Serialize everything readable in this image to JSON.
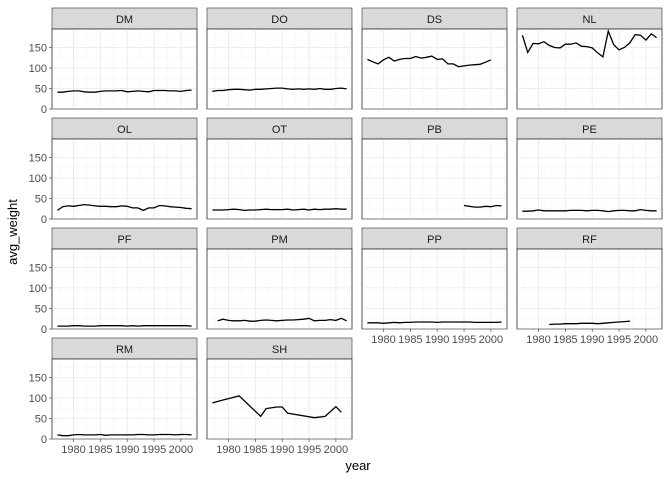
{
  "chart_data": {
    "type": "line",
    "title": "",
    "xlabel": "year",
    "ylabel": "avg_weight",
    "xlim": [
      1976,
      2003
    ],
    "ylim": [
      0,
      195
    ],
    "x_ticks": [
      1980,
      1985,
      1990,
      1995,
      2000
    ],
    "y_ticks": [
      0,
      50,
      100,
      150
    ],
    "grid": true,
    "facet_ncol": 4,
    "line_color": "#000000",
    "strip_color": "#d9d9d9",
    "panels": [
      {
        "name": "DM",
        "x": [
          1977,
          1978,
          1979,
          1980,
          1981,
          1982,
          1983,
          1984,
          1985,
          1986,
          1987,
          1988,
          1989,
          1990,
          1991,
          1992,
          1993,
          1994,
          1995,
          1996,
          1997,
          1998,
          1999,
          2000,
          2001,
          2002
        ],
        "y": [
          41,
          41,
          43,
          44,
          44,
          42,
          41,
          41,
          43,
          44,
          44,
          44,
          45,
          42,
          43,
          44,
          43,
          42,
          45,
          45,
          45,
          44,
          44,
          43,
          45,
          46
        ]
      },
      {
        "name": "DO",
        "x": [
          1977,
          1978,
          1979,
          1980,
          1981,
          1982,
          1983,
          1984,
          1985,
          1986,
          1987,
          1988,
          1989,
          1990,
          1991,
          1992,
          1993,
          1994,
          1995,
          1996,
          1997,
          1998,
          1999,
          2000,
          2001,
          2002
        ],
        "y": [
          43,
          45,
          45,
          47,
          48,
          48,
          47,
          46,
          48,
          48,
          49,
          50,
          51,
          51,
          49,
          48,
          49,
          48,
          49,
          48,
          50,
          48,
          48,
          50,
          51,
          49
        ]
      },
      {
        "name": "DS",
        "x": [
          1977,
          1978,
          1979,
          1980,
          1981,
          1982,
          1983,
          1984,
          1985,
          1986,
          1987,
          1988,
          1989,
          1990,
          1991,
          1992,
          1993,
          1994,
          1995,
          1996,
          1997,
          1998,
          1999,
          2000
        ],
        "y": [
          121,
          115,
          110,
          120,
          126,
          117,
          121,
          123,
          123,
          128,
          124,
          126,
          129,
          121,
          122,
          110,
          110,
          103,
          105,
          107,
          108,
          109,
          114,
          120
        ]
      },
      {
        "name": "NL",
        "x": [
          1977,
          1978,
          1979,
          1980,
          1981,
          1982,
          1983,
          1984,
          1985,
          1986,
          1987,
          1988,
          1989,
          1990,
          1991,
          1992,
          1993,
          1994,
          1995,
          1996,
          1997,
          1998,
          1999,
          2000,
          2001,
          2002
        ],
        "y": [
          180,
          138,
          160,
          159,
          164,
          155,
          150,
          149,
          158,
          158,
          161,
          153,
          152,
          149,
          137,
          127,
          190,
          157,
          144,
          150,
          161,
          181,
          180,
          168,
          183,
          174
        ]
      },
      {
        "name": "OL",
        "x": [
          1977,
          1978,
          1979,
          1980,
          1981,
          1982,
          1983,
          1984,
          1985,
          1986,
          1987,
          1988,
          1989,
          1990,
          1991,
          1992,
          1993,
          1994,
          1995,
          1996,
          1997,
          1998,
          1999,
          2000,
          2001,
          2002
        ],
        "y": [
          21,
          30,
          32,
          31,
          33,
          35,
          34,
          32,
          31,
          31,
          30,
          30,
          32,
          31,
          27,
          27,
          21,
          27,
          27,
          33,
          32,
          30,
          29,
          28,
          26,
          25
        ]
      },
      {
        "name": "OT",
        "x": [
          1977,
          1978,
          1979,
          1980,
          1981,
          1982,
          1983,
          1984,
          1985,
          1986,
          1987,
          1988,
          1989,
          1990,
          1991,
          1992,
          1993,
          1994,
          1995,
          1996,
          1997,
          1998,
          1999,
          2000,
          2001,
          2002
        ],
        "y": [
          22,
          22,
          22,
          23,
          24,
          23,
          21,
          22,
          22,
          23,
          24,
          23,
          23,
          23,
          24,
          22,
          23,
          24,
          22,
          24,
          23,
          24,
          24,
          25,
          24,
          24
        ]
      },
      {
        "name": "PB",
        "x": [
          1995,
          1996,
          1997,
          1998,
          1999,
          2000,
          2001,
          2002
        ],
        "y": [
          33,
          31,
          29,
          29,
          31,
          30,
          33,
          32
        ]
      },
      {
        "name": "PE",
        "x": [
          1977,
          1978,
          1979,
          1980,
          1981,
          1982,
          1983,
          1984,
          1985,
          1986,
          1987,
          1988,
          1989,
          1990,
          1991,
          1992,
          1993,
          1994,
          1995,
          1996,
          1997,
          1998,
          1999,
          2000,
          2001,
          2002
        ],
        "y": [
          19,
          19,
          20,
          22,
          20,
          20,
          20,
          20,
          20,
          21,
          21,
          21,
          20,
          21,
          21,
          20,
          18,
          20,
          21,
          21,
          20,
          20,
          23,
          21,
          20,
          20
        ]
      },
      {
        "name": "PF",
        "x": [
          1977,
          1978,
          1979,
          1980,
          1981,
          1982,
          1983,
          1984,
          1985,
          1986,
          1987,
          1988,
          1989,
          1990,
          1991,
          1992,
          1993,
          1994,
          1995,
          1996,
          1997,
          1998,
          1999,
          2000,
          2001,
          2002
        ],
        "y": [
          7,
          7,
          7,
          8,
          8,
          7,
          7,
          7,
          8,
          8,
          8,
          8,
          8,
          7,
          8,
          7,
          8,
          8,
          8,
          8,
          8,
          8,
          8,
          8,
          8,
          7
        ]
      },
      {
        "name": "PM",
        "x": [
          1978,
          1979,
          1980,
          1981,
          1982,
          1983,
          1984,
          1985,
          1986,
          1987,
          1988,
          1989,
          1990,
          1991,
          1992,
          1993,
          1994,
          1995,
          1996,
          1997,
          1998,
          1999,
          2000,
          2001,
          2002
        ],
        "y": [
          20,
          24,
          21,
          20,
          20,
          21,
          19,
          19,
          21,
          22,
          21,
          20,
          21,
          22,
          22,
          23,
          24,
          26,
          20,
          21,
          21,
          23,
          21,
          26,
          20
        ]
      },
      {
        "name": "PP",
        "x": [
          1977,
          1978,
          1979,
          1980,
          1981,
          1982,
          1983,
          1984,
          1985,
          1986,
          1987,
          1988,
          1989,
          1990,
          1991,
          1992,
          1993,
          1994,
          1995,
          1996,
          1997,
          1998,
          1999,
          2000,
          2001,
          2002
        ],
        "y": [
          15,
          15,
          15,
          14,
          15,
          16,
          15,
          16,
          16,
          17,
          17,
          17,
          17,
          16,
          17,
          17,
          17,
          17,
          17,
          17,
          16,
          16,
          16,
          16,
          16,
          17
        ]
      },
      {
        "name": "RF",
        "x": [
          1982,
          1983,
          1984,
          1985,
          1986,
          1987,
          1988,
          1989,
          1990,
          1991,
          1992,
          1993,
          1994,
          1995,
          1996,
          1997
        ],
        "y": [
          11,
          12,
          12,
          13,
          13,
          13,
          14,
          14,
          14,
          13,
          14,
          15,
          16,
          17,
          18,
          19
        ]
      },
      {
        "name": "RM",
        "x": [
          1977,
          1978,
          1979,
          1980,
          1981,
          1982,
          1983,
          1984,
          1985,
          1986,
          1987,
          1988,
          1989,
          1990,
          1991,
          1992,
          1993,
          1994,
          1995,
          1996,
          1997,
          1998,
          1999,
          2000,
          2001,
          2002
        ],
        "y": [
          10,
          8,
          8,
          10,
          11,
          10,
          10,
          10,
          11,
          9,
          10,
          10,
          10,
          10,
          10,
          11,
          11,
          10,
          10,
          11,
          11,
          11,
          10,
          11,
          11,
          10
        ]
      },
      {
        "name": "SH",
        "x": [
          1977,
          1979,
          1982,
          1986,
          1987,
          1989,
          1990,
          1991,
          1996,
          1998,
          2000,
          2001
        ],
        "y": [
          88,
          95,
          105,
          55,
          74,
          78,
          78,
          63,
          52,
          55,
          79,
          65
        ]
      }
    ]
  }
}
